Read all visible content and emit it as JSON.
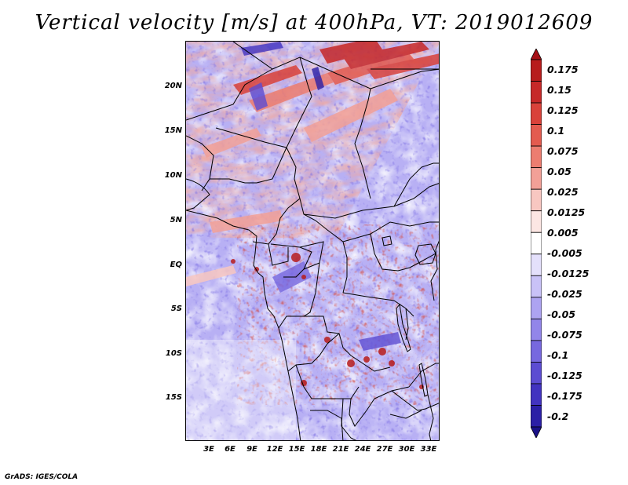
{
  "title": "Vertical velocity [m/s] at 400hPa, VT: 2019012609",
  "lat_labels": [
    "20N",
    "15N",
    "10N",
    "5N",
    "EQ",
    "5S",
    "10S",
    "15S"
  ],
  "lon_labels": [
    "3E",
    "6E",
    "9E",
    "12E",
    "15E",
    "18E",
    "21E",
    "24E",
    "27E",
    "30E",
    "33E"
  ],
  "colorbar": {
    "labels": [
      "0.175",
      "0.15",
      "0.125",
      "0.1",
      "0.075",
      "0.05",
      "0.025",
      "0.0125",
      "0.005",
      "-0.005",
      "-0.0125",
      "-0.025",
      "-0.05",
      "-0.075",
      "-0.1",
      "-0.125",
      "-0.175",
      "-0.2"
    ],
    "colors": [
      "#a50f15",
      "#b71c1c",
      "#c62828",
      "#d9423a",
      "#e35b4f",
      "#ec7d70",
      "#f2a097",
      "#f8c7c1",
      "#fce6e3",
      "#ffffff",
      "#e4e0fb",
      "#c9c2f7",
      "#ada3f1",
      "#9285e9",
      "#7768df",
      "#5c4cd2",
      "#4233c0",
      "#2b1fa6",
      "#1a1187"
    ]
  },
  "footer": "GrADS: IGES/COLA"
}
